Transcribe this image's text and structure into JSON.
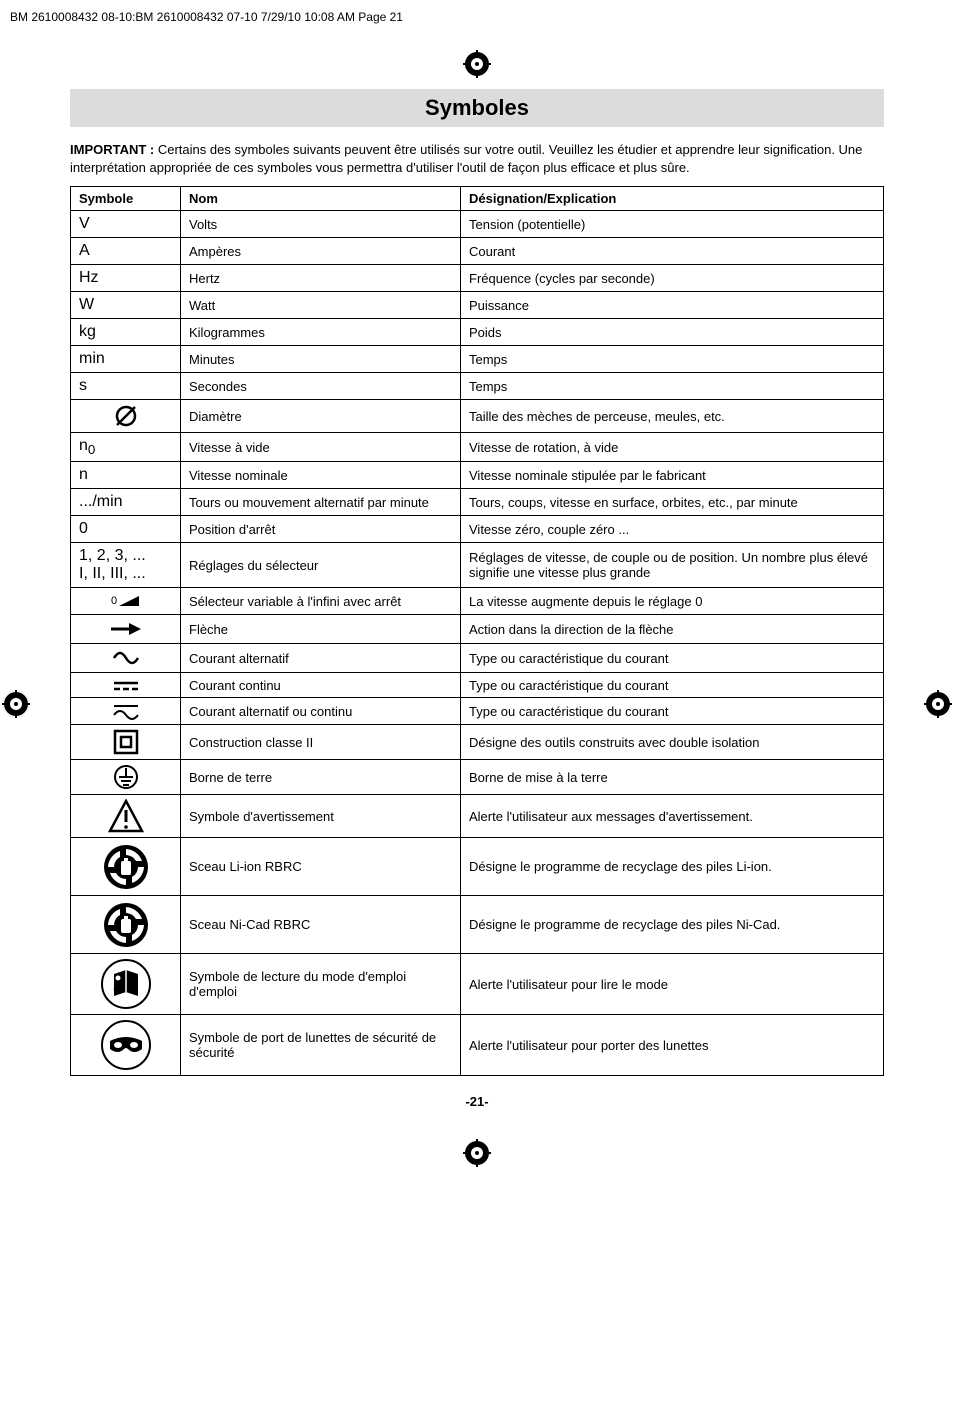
{
  "header_line": "BM 2610008432 08-10:BM 2610008432 07-10  7/29/10  10:08 AM  Page 21",
  "title": "Symboles",
  "intro_bold": "IMPORTANT :",
  "intro_rest": " Certains des symboles suivants peuvent être utilisés sur votre outil. Veuillez les étudier et apprendre leur signification. Une interprétation appropriée de ces symboles vous permettra d'utiliser l'outil de façon plus efficace et plus sûre.",
  "headers": {
    "symbole": "Symbole",
    "nom": "Nom",
    "desig": "Désignation/Explication"
  },
  "rows": [
    {
      "sym_text": "V",
      "nom": "Volts",
      "des": "Tension (potentielle)"
    },
    {
      "sym_text": "A",
      "nom": "Ampères",
      "des": "Courant"
    },
    {
      "sym_text": "Hz",
      "nom": "Hertz",
      "des": "Fréquence (cycles par seconde)"
    },
    {
      "sym_text": "W",
      "nom": "Watt",
      "des": "Puissance"
    },
    {
      "sym_text": "kg",
      "nom": "Kilogrammes",
      "des": "Poids"
    },
    {
      "sym_text": "min",
      "nom": "Minutes",
      "des": "Temps"
    },
    {
      "sym_text": "s",
      "nom": "Secondes",
      "des": "Temps"
    },
    {
      "sym_icon": "diameter",
      "nom": "Diamètre",
      "des": "Taille des mèches de perceuse, meules, etc."
    },
    {
      "sym_html": "n<sub>0</sub>",
      "nom": "Vitesse à vide",
      "des": "Vitesse de rotation, à vide"
    },
    {
      "sym_text": "n",
      "nom": "Vitesse nominale",
      "des": "Vitesse nominale stipulée par le fabricant"
    },
    {
      "sym_text": ".../min",
      "nom": "Tours ou mouvement alternatif par minute",
      "des": "Tours, coups, vitesse en surface, orbites, etc., par minute"
    },
    {
      "sym_text": "0",
      "nom": "Position d'arrêt",
      "des": "Vitesse zéro, couple zéro ..."
    },
    {
      "sym_html": "1, 2, 3, ...<br>I, II, III, ...",
      "nom": "Réglages du sélecteur",
      "des": "Réglages de vitesse, de couple ou de position. Un nombre plus élevé signifie une vitesse plus grande"
    },
    {
      "sym_icon": "selector",
      "nom": "Sélecteur variable à l'infini avec arrêt",
      "des": "La vitesse augmente depuis le réglage 0"
    },
    {
      "sym_icon": "arrow",
      "nom": "Flèche",
      "des": "Action dans la direction de la flèche"
    },
    {
      "sym_icon": "ac",
      "nom": "Courant alternatif",
      "des": "Type ou caractéristique du courant"
    },
    {
      "sym_icon": "dc",
      "nom": "Courant continu",
      "des": "Type ou caractéristique du courant"
    },
    {
      "sym_icon": "acdc",
      "nom": "Courant alternatif ou continu",
      "des": "Type ou caractéristique du courant"
    },
    {
      "sym_icon": "class2",
      "nom": "Construction classe II",
      "des": "Désigne des outils construits avec double isolation"
    },
    {
      "sym_icon": "earth",
      "nom": "Borne de terre",
      "des": "Borne de mise à la terre"
    },
    {
      "sym_icon": "warning",
      "nom": "Symbole d'avertissement",
      "des": "Alerte l'utilisateur aux messages d'avertissement."
    },
    {
      "sym_icon": "rbrc",
      "tall": true,
      "nom": "Sceau Li-ion RBRC",
      "des": "Désigne le programme de recyclage des piles Li-ion."
    },
    {
      "sym_icon": "rbrc",
      "tall": true,
      "nom": "Sceau Ni-Cad RBRC",
      "des": "Désigne le programme de recyclage des piles Ni-Cad."
    },
    {
      "sym_icon": "manual",
      "tall": true,
      "nom": "Symbole de lecture du mode d'emploi d'emploi",
      "des": "Alerte l'utilisateur pour lire le mode"
    },
    {
      "sym_icon": "goggles",
      "tall": true,
      "nom": "Symbole de port de lunettes de sécurité de sécurité",
      "des": "Alerte l'utilisateur pour porter des lunettes"
    }
  ],
  "page_number": "-21-",
  "colors": {
    "title_bg": "#dcdcdc",
    "text": "#000000",
    "bg": "#ffffff",
    "border": "#000000"
  }
}
